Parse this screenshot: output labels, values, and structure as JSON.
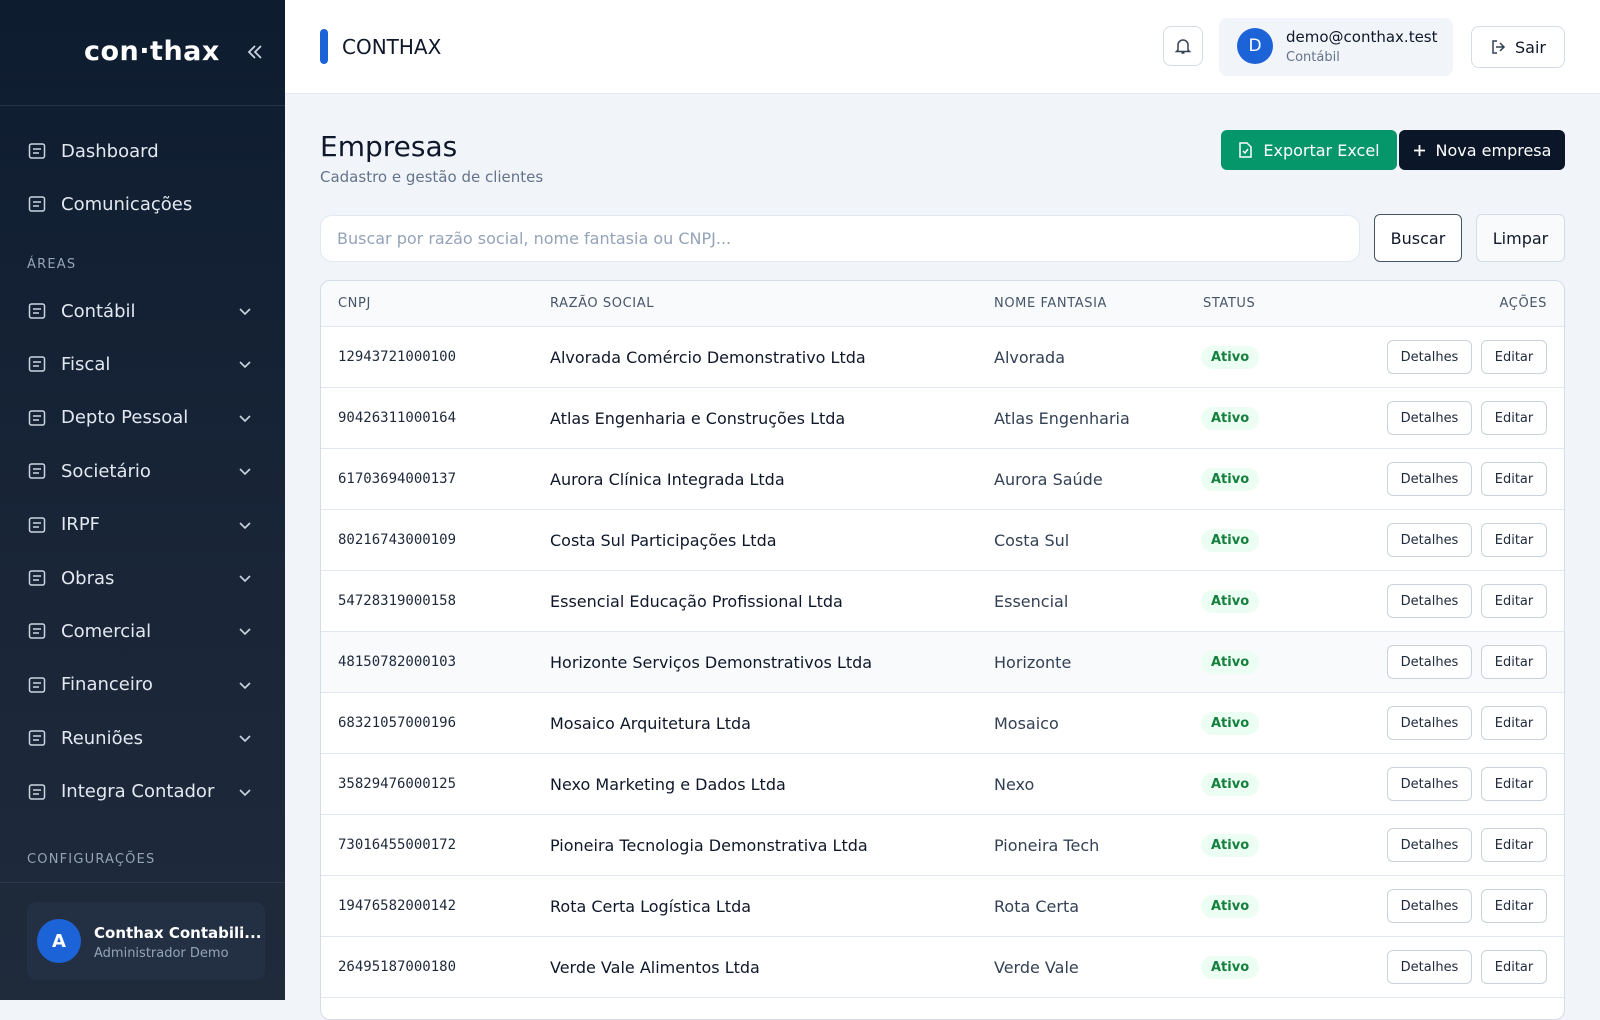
{
  "sidebar": {
    "logo": "con·thax",
    "nav": [
      "Dashboard",
      "Comunicações"
    ],
    "areas_title": "ÁREAS",
    "areas": [
      "Contábil",
      "Fiscal",
      "Depto Pessoal",
      "Societário",
      "IRPF",
      "Obras",
      "Comercial",
      "Financeiro",
      "Reuniões",
      "Integra Contador"
    ],
    "config_title": "CONFIGURAÇÕES",
    "user": {
      "avatar": "A",
      "name": "Conthax Contabili...",
      "role": "Administrador Demo"
    }
  },
  "header": {
    "brand": "CONTHAX",
    "user": {
      "avatar": "D",
      "email": "demo@conthax.test",
      "role": "Contábil"
    },
    "logout": "Sair"
  },
  "page": {
    "title": "Empresas",
    "subtitle": "Cadastro e gestão de clientes",
    "export_button": "Exportar Excel",
    "new_button": "Nova empresa",
    "search_placeholder": "Buscar por razão social, nome fantasia ou CNPJ...",
    "search_button": "Buscar",
    "clear_button": "Limpar"
  },
  "table": {
    "columns": [
      "CNPJ",
      "RAZÃO SOCIAL",
      "NOME FANTASIA",
      "STATUS",
      "AÇÕES"
    ],
    "actions": [
      "Detalhes",
      "Editar"
    ],
    "rows": [
      [
        "12943721000100",
        "Alvorada Comércio Demonstrativo Ltda",
        "Alvorada",
        "Ativo"
      ],
      [
        "90426311000164",
        "Atlas Engenharia e Construções Ltda",
        "Atlas Engenharia",
        "Ativo"
      ],
      [
        "61703694000137",
        "Aurora Clínica Integrada Ltda",
        "Aurora Saúde",
        "Ativo"
      ],
      [
        "80216743000109",
        "Costa Sul Participações Ltda",
        "Costa Sul",
        "Ativo"
      ],
      [
        "54728319000158",
        "Essencial Educação Profissional Ltda",
        "Essencial",
        "Ativo"
      ],
      [
        "48150782000103",
        "Horizonte Serviços Demonstrativos Ltda",
        "Horizonte",
        "Ativo"
      ],
      [
        "68321057000196",
        "Mosaico Arquitetura Ltda",
        "Mosaico",
        "Ativo"
      ],
      [
        "35829476000125",
        "Nexo Marketing e Dados Ltda",
        "Nexo",
        "Ativo"
      ],
      [
        "73016455000172",
        "Pioneira Tecnologia Demonstrativa Ltda",
        "Pioneira Tech",
        "Ativo"
      ],
      [
        "19476582000142",
        "Rota Certa Logística Ltda",
        "Rota Certa",
        "Ativo"
      ],
      [
        "26495187000180",
        "Verde Vale Alimentos Ltda",
        "Verde Vale",
        "Ativo"
      ]
    ]
  }
}
